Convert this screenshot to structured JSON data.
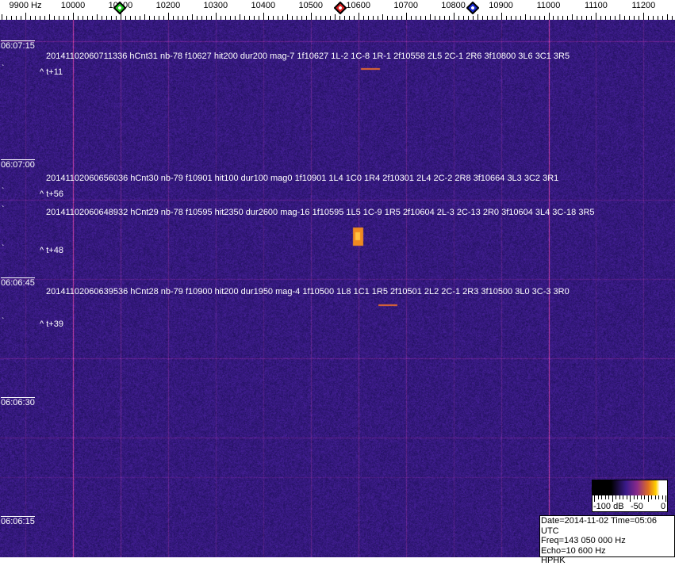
{
  "freq_axis": {
    "unit_label": "9900 Hz",
    "labels": [
      "10000",
      "10100",
      "10200",
      "10300",
      "10400",
      "10500",
      "10600",
      "10700",
      "10800",
      "10900",
      "11000",
      "11100",
      "11200"
    ],
    "markers": [
      {
        "name": "green",
        "color": "#22cc22",
        "freq_hz": 10098
      },
      {
        "name": "red",
        "color": "#dd2222",
        "freq_hz": 10562
      },
      {
        "name": "blue",
        "color": "#1a2ad0",
        "freq_hz": 10840
      }
    ]
  },
  "time_labels": [
    "06:07:15",
    "06:07:00",
    "06:06:45",
    "06:06:30",
    "06:06:15"
  ],
  "detections": [
    {
      "line": "20141102060711336 hCnt31 nb-78 f10627 hit200 dur200 mag-7 1f10627 1L-2 1C-8 1R-1 2f10558 2L5 2C-1 2R6 3f10800 3L6 3C1 3R5",
      "offset": "^ t+11"
    },
    {
      "line": "20141102060656036 hCnt30 nb-79 f10901 hit100 dur100 mag0 1f10901 1L4 1C0 1R4 2f10301 2L4 2C-2 2R8 3f10664 3L3 3C2 3R1",
      "offset": "^ t+56"
    },
    {
      "line": "20141102060648932 hCnt29 nb-78 f10595 hit2350 dur2600 mag-16 1f10595 1L5 1C-9 1R5 2f10604 2L-3 2C-13 2R0 3f10604 3L4 3C-18 3R5",
      "offset": "^ t+48"
    },
    {
      "line": "20141102060639536 hCnt28 nb-79 f10900 hit200 dur1950 mag-4 1f10500 1L8 1C1 1R5 2f10501 2L2 2C-1 2R3 3f10500 3L0 3C-3 3R0",
      "offset": "^ t+39"
    }
  ],
  "colorbar": {
    "labels": [
      "-100 dB",
      "-50",
      "0"
    ]
  },
  "info": {
    "date_time": "Date=2014-11-02 Time=05:06 UTC",
    "freq": "Freq=143 050 000 Hz",
    "echo": "Echo=10 600 Hz",
    "station": "HPHK"
  }
}
